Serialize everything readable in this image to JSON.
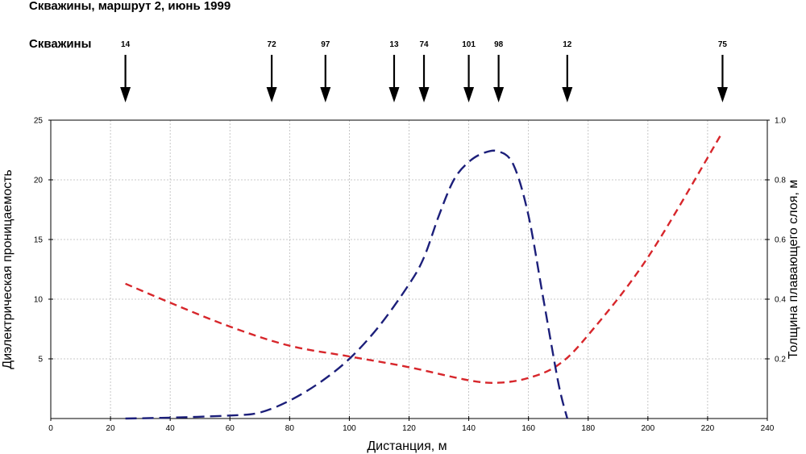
{
  "header": {
    "title": "Скважины, маршрут 2, июнь 1999"
  },
  "chart_data": {
    "type": "line",
    "wells_label": "Скважины",
    "wells": [
      {
        "label": "14",
        "x": 25
      },
      {
        "label": "72",
        "x": 74
      },
      {
        "label": "97",
        "x": 92
      },
      {
        "label": "13",
        "x": 115
      },
      {
        "label": "74",
        "x": 125
      },
      {
        "label": "101",
        "x": 140
      },
      {
        "label": "98",
        "x": 150
      },
      {
        "label": "12",
        "x": 173
      },
      {
        "label": "75",
        "x": 225
      }
    ],
    "xlabel": "Дистанция, м",
    "ylabel": "Диэлектрическая проницаемость",
    "y2label": "Толщина плавающего слоя, м",
    "xlim": [
      0,
      240
    ],
    "ylim": [
      0,
      25
    ],
    "y2lim": [
      0,
      1.0
    ],
    "x_ticks": [
      0,
      20,
      40,
      60,
      80,
      100,
      120,
      140,
      160,
      180,
      200,
      220,
      240
    ],
    "y_ticks": [
      5,
      10,
      15,
      20,
      25
    ],
    "y2_ticks": [
      "0.2",
      "0.4",
      "0.6",
      "0.8",
      "1.0"
    ],
    "grid": true,
    "series": [
      {
        "axis": "left",
        "color": "#d7262b",
        "x": [
          25,
          40,
          60,
          80,
          100,
          120,
          140,
          150,
          160,
          170,
          180,
          200,
          225
        ],
        "values": [
          11.3,
          9.7,
          7.7,
          6.1,
          5.2,
          4.3,
          3.2,
          3.0,
          3.4,
          4.5,
          7.0,
          13.5,
          24.0
        ]
      },
      {
        "axis": "right",
        "color": "#1c1f7a",
        "x": [
          25,
          40,
          60,
          70,
          80,
          90,
          100,
          110,
          120,
          125,
          130,
          135,
          140,
          145,
          150,
          155,
          160,
          165,
          170,
          173
        ],
        "values": [
          0.0,
          0.003,
          0.01,
          0.02,
          0.06,
          0.12,
          0.2,
          0.31,
          0.45,
          0.54,
          0.68,
          0.8,
          0.86,
          0.89,
          0.895,
          0.85,
          0.68,
          0.4,
          0.12,
          0.0
        ]
      }
    ]
  }
}
